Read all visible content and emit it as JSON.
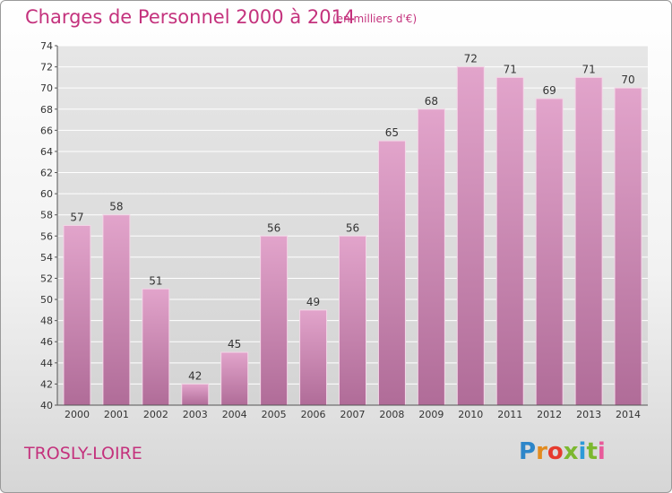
{
  "header": {
    "title": "Charges de Personnel 2000 à 2014",
    "subtitle": "(en milliers d'€)"
  },
  "footer": {
    "place": "TROSLY-LOIRE",
    "logo_letters": [
      "P",
      "r",
      "o",
      "x",
      "i",
      "t",
      "i"
    ]
  },
  "colors": {
    "bar_top": "#e2a4cb",
    "bar_bottom": "#b06c98",
    "accent": "#c4327d"
  },
  "chart_data": {
    "type": "bar",
    "title": "Charges de Personnel 2000 à 2014",
    "subtitle": "(en milliers d'€)",
    "categories": [
      "2000",
      "2001",
      "2002",
      "2003",
      "2004",
      "2005",
      "2006",
      "2007",
      "2008",
      "2009",
      "2010",
      "2011",
      "2012",
      "2013",
      "2014"
    ],
    "values": [
      57,
      58,
      51,
      42,
      45,
      56,
      49,
      56,
      65,
      68,
      72,
      71,
      69,
      71,
      70
    ],
    "ylim": [
      40,
      74
    ],
    "yticks": [
      40,
      42,
      44,
      46,
      48,
      50,
      52,
      54,
      56,
      58,
      60,
      62,
      64,
      66,
      68,
      70,
      72,
      74
    ],
    "grid": true,
    "legend": "none"
  }
}
